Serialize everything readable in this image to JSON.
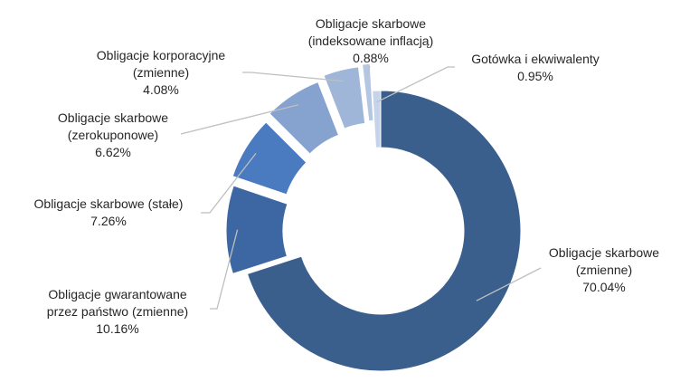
{
  "chart_data": {
    "type": "pie",
    "variant": "donut, exploded slices",
    "title": "",
    "legend": "none (leader-line data labels)",
    "slices": [
      {
        "name_lines": [
          "Obligacje skarbowe",
          "(zmienne)"
        ],
        "value": 70.04,
        "value_label": "70.04%",
        "color": "#3B5F8D"
      },
      {
        "name_lines": [
          "Obligacje gwarantowane",
          "przez państwo (zmienne)"
        ],
        "value": 10.16,
        "value_label": "10.16%",
        "color": "#3D67A3"
      },
      {
        "name_lines": [
          "Obligacje skarbowe (stałe)"
        ],
        "value": 7.26,
        "value_label": "7.26%",
        "color": "#4A7ABF"
      },
      {
        "name_lines": [
          "Obligacje skarbowe",
          "(zerokuponowe)"
        ],
        "value": 6.62,
        "value_label": "6.62%",
        "color": "#86A3CF"
      },
      {
        "name_lines": [
          "Obligacje korporacyjne",
          "(zmienne)"
        ],
        "value": 4.08,
        "value_label": "4.08%",
        "color": "#9FB6D9"
      },
      {
        "name_lines": [
          "Obligacje skarbowe",
          "(indeksowane inflacją)"
        ],
        "value": 0.88,
        "value_label": "0.88%",
        "color": "#B4C7E2"
      },
      {
        "name_lines": [
          "Gotówka i ekwiwalenty"
        ],
        "value": 0.95,
        "value_label": "0.95%",
        "color": "#C5D4EA"
      }
    ]
  }
}
